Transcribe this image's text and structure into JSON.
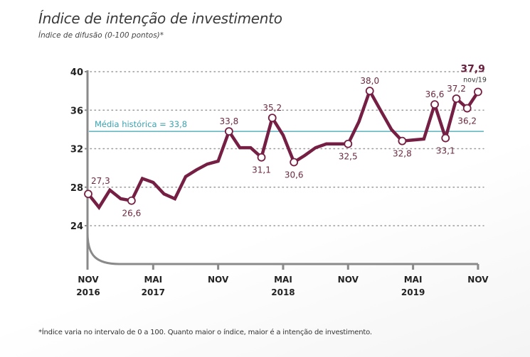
{
  "title": "Índice de intenção de investimento",
  "subtitle": "Índice de difusão (0-100 pontos)*",
  "footnote": "*Índice varia no intervalo de 0 a 100. Quanto maior o índice, maior é a intenção de investimento.",
  "colors": {
    "line": "#761f44",
    "reference": "#3aa3b0",
    "axis": "#8a8a8a",
    "grid": "#9a9a9a"
  },
  "chart_data": {
    "type": "line",
    "title": "Índice de intenção de investimento",
    "subtitle": "Índice de difusão (0-100 pontos)*",
    "xlabel": "",
    "ylabel": "",
    "ylim": [
      20,
      40
    ],
    "yticks": [
      24,
      28,
      32,
      36,
      40
    ],
    "grid": "horizontal-dotted",
    "x": [
      "nov/16",
      "dez/16",
      "jan/17",
      "fev/17",
      "mar/17",
      "abr/17",
      "mai/17",
      "jun/17",
      "jul/17",
      "ago/17",
      "set/17",
      "out/17",
      "nov/17",
      "dez/17",
      "jan/18",
      "fev/18",
      "mar/18",
      "abr/18",
      "mai/18",
      "jun/18",
      "jul/18",
      "ago/18",
      "set/18",
      "out/18",
      "nov/18",
      "dez/18",
      "jan/19",
      "fev/19",
      "mar/19",
      "abr/19",
      "mai/19",
      "jun/19",
      "jul/19",
      "ago/19",
      "set/19",
      "out/19",
      "nov/19"
    ],
    "xticks": [
      {
        "index": 0,
        "line1": "NOV",
        "line2": "2016"
      },
      {
        "index": 6,
        "line1": "MAI",
        "line2": "2017"
      },
      {
        "index": 12,
        "line1": "NOV",
        "line2": ""
      },
      {
        "index": 18,
        "line1": "MAI",
        "line2": "2018"
      },
      {
        "index": 24,
        "line1": "NOV",
        "line2": ""
      },
      {
        "index": 30,
        "line1": "MAI",
        "line2": "2019"
      },
      {
        "index": 36,
        "line1": "NOV",
        "line2": ""
      }
    ],
    "series": [
      {
        "name": "Índice de intenção de investimento",
        "values": [
          27.3,
          25.9,
          27.7,
          26.8,
          26.6,
          28.9,
          28.5,
          27.3,
          26.8,
          29.1,
          29.8,
          30.4,
          30.7,
          33.8,
          32.1,
          32.1,
          31.1,
          35.2,
          33.4,
          30.6,
          31.3,
          32.1,
          32.5,
          32.5,
          32.5,
          34.8,
          38.0,
          36.0,
          34.0,
          32.8,
          32.9,
          33.0,
          36.6,
          33.1,
          37.2,
          36.2,
          37.9
        ]
      }
    ],
    "labeled_points": [
      {
        "index": 0,
        "label": "27,3",
        "pos": "above"
      },
      {
        "index": 4,
        "label": "26,6",
        "pos": "below"
      },
      {
        "index": 13,
        "label": "33,8",
        "pos": "above"
      },
      {
        "index": 16,
        "label": "31,1",
        "pos": "below"
      },
      {
        "index": 17,
        "label": "35,2",
        "pos": "above"
      },
      {
        "index": 19,
        "label": "30,6",
        "pos": "below"
      },
      {
        "index": 24,
        "label": "32,5",
        "pos": "below"
      },
      {
        "index": 26,
        "label": "38,0",
        "pos": "above"
      },
      {
        "index": 29,
        "label": "32,8",
        "pos": "below"
      },
      {
        "index": 32,
        "label": "36,6",
        "pos": "above"
      },
      {
        "index": 33,
        "label": "33,1",
        "pos": "below"
      },
      {
        "index": 34,
        "label": "37,2",
        "pos": "above"
      },
      {
        "index": 35,
        "label": "36,2",
        "pos": "below"
      },
      {
        "index": 36,
        "label": "37,9",
        "pos": "last",
        "sublabel": "nov/19"
      }
    ],
    "reference_line": {
      "value": 33.8,
      "label": "Média histórica = 33,8"
    },
    "legend": "none"
  }
}
